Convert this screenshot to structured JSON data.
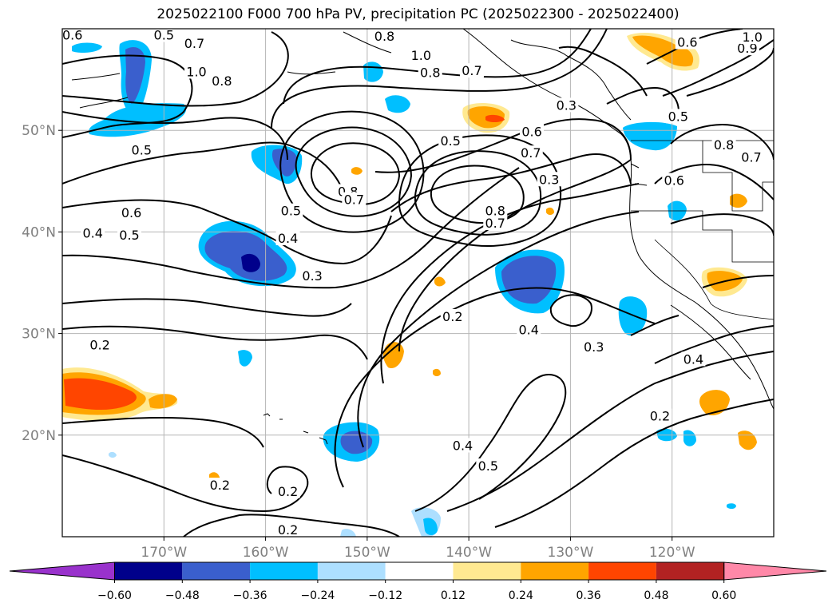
{
  "title": "2025022100 F000 700 hPa PV, precipitation PC (2025022300 - 2025022400)",
  "longitude_ticks": [
    {
      "label": "170°W",
      "lon": -170
    },
    {
      "label": "160°W",
      "lon": -160
    },
    {
      "label": "150°W",
      "lon": -150
    },
    {
      "label": "140°W",
      "lon": -140
    },
    {
      "label": "130°W",
      "lon": -130
    },
    {
      "label": "120°W",
      "lon": -120
    }
  ],
  "latitude_ticks": [
    {
      "label": "50°N",
      "lat": 50
    },
    {
      "label": "40°N",
      "lat": 40
    },
    {
      "label": "30°N",
      "lat": 30
    },
    {
      "label": "20°N",
      "lat": 20
    }
  ],
  "map_extent": {
    "lon_min": -180,
    "lon_max": -110,
    "lat_min": 10,
    "lat_max": 60
  },
  "colorbar": {
    "tick_labels": [
      "−0.60",
      "−0.48",
      "−0.36",
      "−0.24",
      "−0.12",
      "0.12",
      "0.24",
      "0.36",
      "0.48",
      "0.60"
    ],
    "colors": [
      "#9932CC",
      "#00008B",
      "#3A5FCD",
      "#00BFFF",
      "#ADDFFF",
      "#FFFFFF",
      "#FFE991",
      "#FFA500",
      "#FF4500",
      "#B22222",
      "#FF88A8"
    ]
  },
  "contour_labels": [
    {
      "text": "0.6",
      "lon": -179.0,
      "lat": 59.4
    },
    {
      "text": "0.5",
      "lon": -170.0,
      "lat": 59.4
    },
    {
      "text": "0.7",
      "lon": -167.0,
      "lat": 58.6
    },
    {
      "text": "1.0",
      "lon": -166.8,
      "lat": 55.8
    },
    {
      "text": "0.8",
      "lon": -164.3,
      "lat": 54.9
    },
    {
      "text": "0.5",
      "lon": -172.2,
      "lat": 48.1
    },
    {
      "text": "0.6",
      "lon": -173.2,
      "lat": 41.9
    },
    {
      "text": "0.5",
      "lon": -173.4,
      "lat": 39.7
    },
    {
      "text": "0.4",
      "lon": -177.0,
      "lat": 39.9
    },
    {
      "text": "0.4",
      "lon": -157.8,
      "lat": 39.4
    },
    {
      "text": "0.3",
      "lon": -155.4,
      "lat": 35.7
    },
    {
      "text": "0.5",
      "lon": -157.5,
      "lat": 42.1
    },
    {
      "text": "0.8",
      "lon": -151.9,
      "lat": 44.0
    },
    {
      "text": "0.7",
      "lon": -151.3,
      "lat": 43.2
    },
    {
      "text": "0.8",
      "lon": -137.4,
      "lat": 42.1
    },
    {
      "text": "0.7",
      "lon": -137.4,
      "lat": 40.9
    },
    {
      "text": "0.8",
      "lon": -143.8,
      "lat": 55.7
    },
    {
      "text": "1.0",
      "lon": -144.7,
      "lat": 57.4
    },
    {
      "text": "0.7",
      "lon": -139.7,
      "lat": 55.9
    },
    {
      "text": "0.5",
      "lon": -141.8,
      "lat": 49.0
    },
    {
      "text": "0.6",
      "lon": -133.8,
      "lat": 49.9
    },
    {
      "text": "0.7",
      "lon": -133.9,
      "lat": 47.8
    },
    {
      "text": "0.3",
      "lon": -132.1,
      "lat": 45.2
    },
    {
      "text": "0.2",
      "lon": -141.6,
      "lat": 31.7
    },
    {
      "text": "0.4",
      "lon": -134.1,
      "lat": 30.4
    },
    {
      "text": "0.3",
      "lon": -127.7,
      "lat": 28.7
    },
    {
      "text": "0.2",
      "lon": -176.3,
      "lat": 28.9
    },
    {
      "text": "0.2",
      "lon": -164.5,
      "lat": 15.1
    },
    {
      "text": "0.2",
      "lon": -157.8,
      "lat": 14.5
    },
    {
      "text": "0.2",
      "lon": -157.8,
      "lat": 10.7
    },
    {
      "text": "0.4",
      "lon": -140.6,
      "lat": 19.0
    },
    {
      "text": "0.5",
      "lon": -138.1,
      "lat": 17.0
    },
    {
      "text": "0.2",
      "lon": -121.2,
      "lat": 21.9
    },
    {
      "text": "0.4",
      "lon": -117.9,
      "lat": 27.5
    },
    {
      "text": "0.5",
      "lon": -119.4,
      "lat": 51.4
    },
    {
      "text": "0.6",
      "lon": -118.5,
      "lat": 58.7
    },
    {
      "text": "0.9",
      "lon": -112.6,
      "lat": 58.1
    },
    {
      "text": "1.0",
      "lon": -112.1,
      "lat": 59.2
    },
    {
      "text": "0.8",
      "lon": -114.9,
      "lat": 48.6
    },
    {
      "text": "0.7",
      "lon": -112.2,
      "lat": 47.4
    },
    {
      "text": "0.6",
      "lon": -119.8,
      "lat": 45.1
    },
    {
      "text": "0.8",
      "lon": -148.3,
      "lat": 59.3
    },
    {
      "text": "0.3",
      "lon": -130.4,
      "lat": 52.5
    }
  ]
}
